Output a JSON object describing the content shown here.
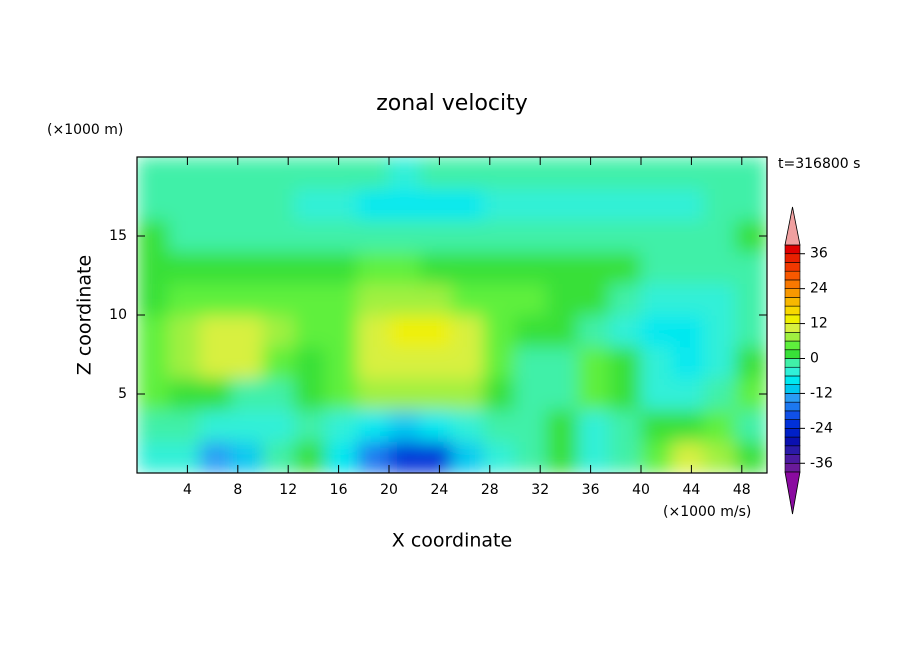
{
  "chart_data": {
    "type": "contour",
    "title": "zonal velocity",
    "xlabel": "X coordinate",
    "ylabel": "Z coordinate",
    "x_unit": "(×1000 m/s)",
    "y_unit": "(×1000 m)",
    "annotation": "t=316800 s",
    "xlim": [
      0,
      50
    ],
    "ylim": [
      0,
      20
    ],
    "xticks": [
      4,
      8,
      12,
      16,
      20,
      24,
      28,
      32,
      36,
      40,
      44,
      48
    ],
    "yticks": [
      5,
      10,
      15
    ],
    "x": [
      1.25,
      3.75,
      6.25,
      8.75,
      11.25,
      13.75,
      16.25,
      18.75,
      21.25,
      23.75,
      26.25,
      28.75,
      31.25,
      33.75,
      36.25,
      38.75,
      41.25,
      43.75,
      46.25,
      48.75
    ],
    "y": [
      1,
      3,
      5,
      7,
      9,
      11,
      13,
      15,
      17,
      19
    ],
    "z": [
      [
        -4,
        -6,
        -14,
        -12,
        -3,
        1,
        -8,
        -16,
        -24,
        -22,
        -12,
        -4,
        -1,
        1,
        -4,
        -2,
        5,
        10,
        7,
        2
      ],
      [
        -2,
        -3,
        -5,
        -6,
        -6,
        -3,
        -4,
        -8,
        -10,
        -9,
        -6,
        -2,
        -1,
        0,
        -6,
        -3,
        0,
        1,
        3,
        -1
      ],
      [
        3,
        2,
        0,
        -2,
        -3,
        1,
        3,
        6,
        7,
        7,
        6,
        2,
        -1,
        -2,
        5,
        2,
        -4,
        -6,
        -2,
        4
      ],
      [
        4,
        6,
        9,
        10,
        5,
        2,
        4,
        9,
        10,
        11,
        9,
        3,
        -1,
        -3,
        4,
        0,
        -6,
        -8,
        -5,
        0
      ],
      [
        3,
        6,
        9,
        9,
        6,
        3,
        5,
        10,
        13,
        13,
        9,
        3,
        1,
        0,
        -1,
        -4,
        -8,
        -9,
        -6,
        -2
      ],
      [
        2,
        4,
        5,
        5,
        4,
        3,
        4,
        6,
        7,
        7,
        5,
        3,
        3,
        2,
        1,
        -1,
        -4,
        -6,
        -6,
        -3
      ],
      [
        2,
        1,
        2,
        2,
        1,
        1,
        2,
        3,
        3,
        2,
        1,
        1,
        2,
        1,
        1,
        1,
        -1,
        -2,
        -1,
        -1
      ],
      [
        1,
        -1,
        -1,
        -2,
        -1,
        -1,
        -2,
        -1,
        -1,
        -2,
        -2,
        -3,
        -2,
        -1,
        -1,
        -1,
        -1,
        -1,
        -1,
        1
      ],
      [
        -1,
        -2,
        -3,
        -3,
        -3,
        -4,
        -6,
        -7,
        -7,
        -7,
        -7,
        -6,
        -6,
        -5,
        -5,
        -5,
        -4,
        -4,
        -3,
        -2
      ],
      [
        -2,
        -2,
        -3,
        -3,
        -3,
        -2,
        -2,
        -3,
        -4,
        -3,
        -3,
        -3,
        -3,
        -3,
        -3,
        -3,
        -3,
        -3,
        -3,
        -3
      ]
    ],
    "levels": [
      -39,
      -36,
      -33,
      -30,
      -27,
      -24,
      -21,
      -18,
      -15,
      -12,
      -9,
      -6,
      -3,
      0,
      3,
      6,
      9,
      12,
      15,
      18,
      21,
      24,
      27,
      30,
      33,
      36,
      39
    ],
    "colors": [
      "#6a1a9a",
      "#4b1aa0",
      "#2a1aa8",
      "#0a10b0",
      "#0020c8",
      "#0030d8",
      "#1050e8",
      "#1c78f0",
      "#2a9cf5",
      "#00c8f0",
      "#00e8f0",
      "#30f0d8",
      "#40f0a8",
      "#38e038",
      "#5ef03c",
      "#a0f040",
      "#d8f040",
      "#f0f000",
      "#f8d800",
      "#f8b800",
      "#f89800",
      "#f87800",
      "#f85800",
      "#f03800",
      "#e82000",
      "#e00000"
    ],
    "over_color": "#f0a0a0",
    "under_color": "#8a0aa0",
    "cbar_ticks": [
      36,
      24,
      12,
      0,
      -12,
      -24,
      -36
    ]
  }
}
